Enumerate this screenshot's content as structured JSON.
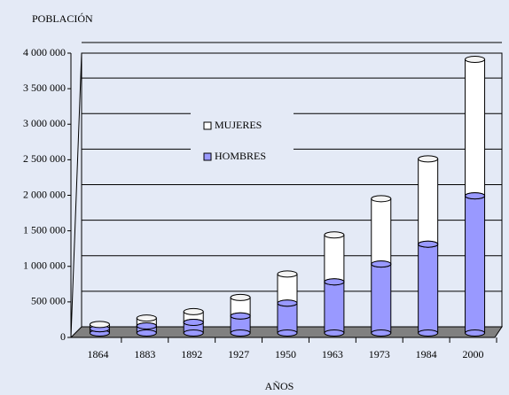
{
  "chart_data": {
    "type": "bar",
    "stacked": true,
    "y_label": "POBLACIÓN",
    "x_label": "AÑOS",
    "categories": [
      "1864",
      "1883",
      "1892",
      "1927",
      "1950",
      "1963",
      "1973",
      "1984",
      "2000"
    ],
    "series": [
      {
        "name": "MUJERES",
        "color": "#ffffff",
        "values": [
          60000,
          110000,
          150000,
          260000,
          410000,
          660000,
          920000,
          1200000,
          1920000
        ]
      },
      {
        "name": "HOMBRES",
        "color": "#9999ff",
        "values": [
          60000,
          100000,
          150000,
          240000,
          420000,
          720000,
          970000,
          1250000,
          1930000
        ]
      }
    ],
    "ylim": [
      0,
      4000000
    ],
    "yticks": [
      0,
      {
        "value": 500000,
        "label": "500 000"
      },
      {
        "value": 1000000,
        "label": "1 000 000"
      },
      {
        "value": 1500000,
        "label": "1 500 000"
      },
      {
        "value": 2000000,
        "label": "2 000 000"
      },
      {
        "value": 2500000,
        "label": "2 500 000"
      },
      {
        "value": 3000000,
        "label": "3 000 000"
      },
      {
        "value": 3500000,
        "label": "3 500 000"
      },
      {
        "value": 4000000,
        "label": "4 000 000"
      }
    ],
    "grid": true
  }
}
